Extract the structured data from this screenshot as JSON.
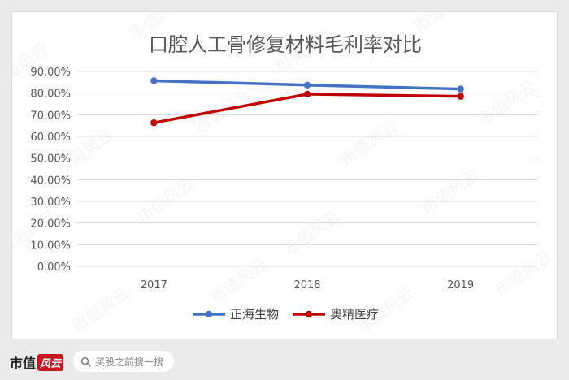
{
  "chart_data": {
    "type": "line",
    "title": "口腔人工骨修复材料毛利率对比",
    "categories": [
      "2017",
      "2018",
      "2019"
    ],
    "series": [
      {
        "name": "正海生物",
        "color": "#4472c4",
        "values": [
          85.7,
          83.7,
          81.9
        ]
      },
      {
        "name": "奥精医疗",
        "color": "#c00000",
        "values": [
          66.3,
          79.5,
          78.5
        ]
      }
    ],
    "ylim": [
      0,
      90
    ],
    "yticks": [
      "0.00%",
      "10.00%",
      "20.00%",
      "30.00%",
      "40.00%",
      "50.00%",
      "60.00%",
      "70.00%",
      "80.00%",
      "90.00%"
    ],
    "ytick_values": [
      0,
      10,
      20,
      30,
      40,
      50,
      60,
      70,
      80,
      90
    ],
    "grid": true,
    "legend_position": "bottom",
    "xlabel": "",
    "ylabel": ""
  },
  "watermark": "市值风云",
  "footer": {
    "brand_name": "市值",
    "brand_stamp": "风云",
    "search_placeholder": "买股之前搜一搜"
  }
}
